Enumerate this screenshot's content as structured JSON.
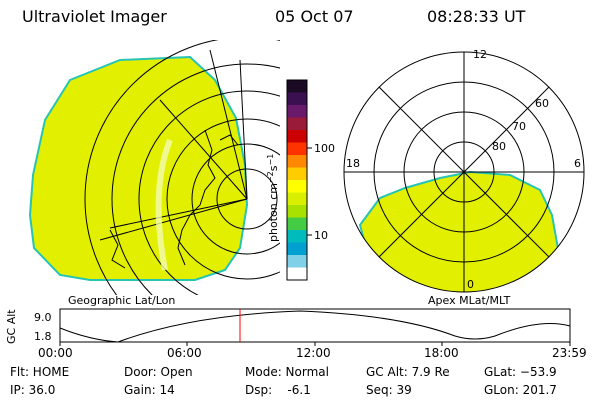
{
  "header": {
    "title": "Ultraviolet Imager",
    "date": "05 Oct 07",
    "time": "08:28:33 UT"
  },
  "colors": {
    "fill": "#e2f000",
    "edge": "#25c4b3",
    "lines": "#000000",
    "cursor": "#ff0000"
  },
  "colorbar": {
    "unit": "photon cm",
    "unit_sup1": "−2",
    "unit_s": "s",
    "unit_sup2": "−1",
    "ticks": [
      "100",
      "10"
    ],
    "colors": [
      "#1a0a24",
      "#3a1050",
      "#6a1a6a",
      "#9a1a3a",
      "#cc0000",
      "#ff3300",
      "#ff8800",
      "#ffcc00",
      "#ffff00",
      "#d8f000",
      "#a8e000",
      "#44cc44",
      "#00bbbb",
      "#00a0d0",
      "#80d0e8",
      "#ffffff"
    ]
  },
  "left_map": {
    "caption": "Geographic Lat/Lon"
  },
  "right_map": {
    "caption": "Apex MLat/MLT",
    "mlt_labels": {
      "top": "12",
      "left": "18",
      "right": "6",
      "bottom": "0"
    },
    "lat_labels": [
      "80",
      "70",
      "60"
    ]
  },
  "timeline": {
    "y_axis_label": "GC Alt",
    "y_ticks": [
      "9.0",
      "1.8"
    ],
    "x_ticks": [
      "00:00",
      "06:00",
      "12:00",
      "18:00",
      "23:59"
    ],
    "cursor_time": "08:28"
  },
  "info": {
    "flt": "Flt: HOME",
    "door": "Door: Open",
    "mode": "Mode: Normal",
    "gcalt": "GC Alt: 7.9 Re",
    "glat": "GLat: −53.9",
    "ip": "IP: 36.0",
    "gain": "Gain: 14",
    "dsp": "Dsp:    -6.1",
    "seq": "Seq: 39",
    "glon": "GLon: 201.7"
  }
}
